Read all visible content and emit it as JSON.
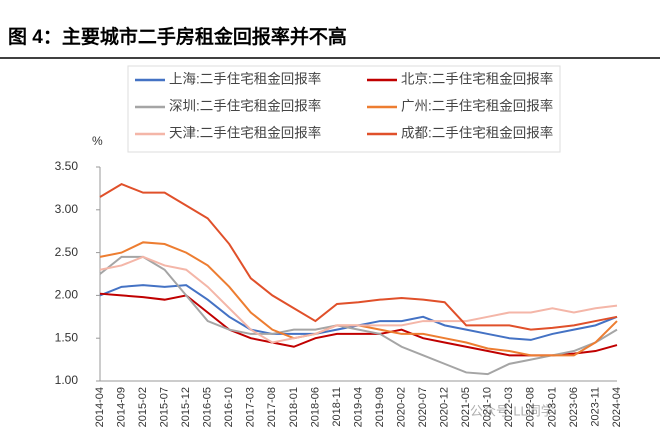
{
  "chart_data": {
    "type": "line",
    "title": "图 4：主要城市二手房租金回报率并不高",
    "y_unit": "%",
    "watermark": "公众号·LL同学",
    "categories": [
      "2014-04",
      "2014-09",
      "2015-02",
      "2015-07",
      "2015-12",
      "2016-05",
      "2016-10",
      "2017-03",
      "2017-08",
      "2018-01",
      "2018-06",
      "2018-11",
      "2019-04",
      "2019-09",
      "2020-02",
      "2020-07",
      "2020-12",
      "2021-05",
      "2021-10",
      "2022-03",
      "2022-08",
      "2023-01",
      "2023-06",
      "2023-11",
      "2024-04"
    ],
    "series": [
      {
        "name": "上海:二手住宅租金回报率",
        "color": "#4472c4",
        "values": [
          2.0,
          2.1,
          2.12,
          2.1,
          2.12,
          1.95,
          1.75,
          1.6,
          1.55,
          1.55,
          1.55,
          1.6,
          1.65,
          1.7,
          1.7,
          1.75,
          1.65,
          1.6,
          1.55,
          1.5,
          1.48,
          1.55,
          1.6,
          1.65,
          1.75
        ]
      },
      {
        "name": "北京:二手住宅租金回报率",
        "color": "#c00000",
        "values": [
          2.02,
          2.0,
          1.98,
          1.95,
          2.0,
          1.8,
          1.6,
          1.5,
          1.45,
          1.4,
          1.5,
          1.55,
          1.55,
          1.55,
          1.6,
          1.5,
          1.45,
          1.4,
          1.35,
          1.3,
          1.3,
          1.3,
          1.32,
          1.35,
          1.42
        ]
      },
      {
        "name": "深圳:二手住宅租金回报率",
        "color": "#a5a5a5",
        "values": [
          2.25,
          2.45,
          2.45,
          2.3,
          2.0,
          1.7,
          1.6,
          1.55,
          1.55,
          1.6,
          1.6,
          1.65,
          1.6,
          1.55,
          1.4,
          1.3,
          1.2,
          1.1,
          1.08,
          1.2,
          1.25,
          1.3,
          1.35,
          1.45,
          1.6
        ]
      },
      {
        "name": "广州:二手住宅租金回报率",
        "color": "#ed7d31",
        "values": [
          2.45,
          2.5,
          2.62,
          2.6,
          2.5,
          2.35,
          2.1,
          1.8,
          1.6,
          1.5,
          1.55,
          1.65,
          1.65,
          1.6,
          1.55,
          1.55,
          1.5,
          1.45,
          1.38,
          1.35,
          1.3,
          1.3,
          1.3,
          1.45,
          1.7
        ]
      },
      {
        "name": "天津:二手住宅租金回报率",
        "color": "#f4b6a8",
        "values": [
          2.3,
          2.35,
          2.45,
          2.35,
          2.3,
          2.1,
          1.85,
          1.6,
          1.45,
          1.5,
          1.55,
          1.65,
          1.65,
          1.65,
          1.65,
          1.7,
          1.7,
          1.7,
          1.75,
          1.8,
          1.8,
          1.85,
          1.8,
          1.85,
          1.88
        ]
      },
      {
        "name": "成都:二手住宅租金回报率",
        "color": "#e0502a",
        "values": [
          3.15,
          3.3,
          3.2,
          3.2,
          3.05,
          2.9,
          2.6,
          2.2,
          2.0,
          1.85,
          1.7,
          1.9,
          1.92,
          1.95,
          1.97,
          1.95,
          1.92,
          1.65,
          1.65,
          1.65,
          1.6,
          1.62,
          1.65,
          1.7,
          1.75
        ]
      }
    ],
    "ylim": [
      1,
      3.5
    ],
    "yticks": [
      {
        "value": 1,
        "label": "1.00"
      },
      {
        "value": 1.5,
        "label": "1.50"
      },
      {
        "value": 2,
        "label": "2.00"
      },
      {
        "value": 2.5,
        "label": "2.50"
      },
      {
        "value": 3,
        "label": "3.00"
      },
      {
        "value": 3.5,
        "label": "3.50"
      }
    ]
  }
}
